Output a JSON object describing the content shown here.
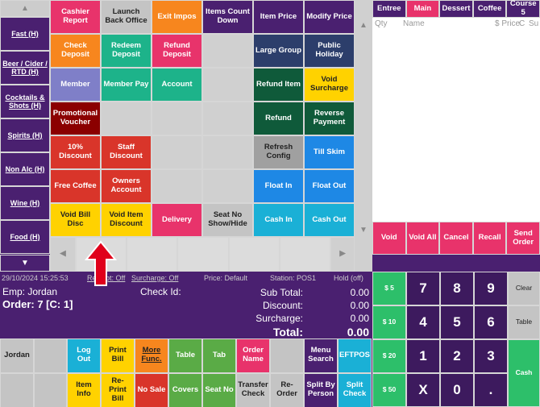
{
  "category_nav": {
    "items": [
      "Fast (H)",
      "Beer / Cider / RTD (H)",
      "Cocktails & Shots (H)",
      "Spirits (H)",
      "Non Alc (H)",
      "Wine (H)",
      "Food (H)"
    ]
  },
  "function_grid": {
    "buttons": [
      "Cashier Report",
      "Launch Back Office",
      "Exit Impos",
      "Items Count Down",
      "Item Price",
      "Modify Price",
      "Check Deposit",
      "Redeem Deposit",
      "Refund Deposit",
      "Large Group",
      "Public Holiday",
      "Member",
      "Member Pay",
      "Account",
      "Refund Item",
      "Void Surcharge",
      "Promotional Voucher",
      "Refund",
      "Reverse Payment",
      "10% Discount",
      "Staff Discount",
      "Refresh Config",
      "Till Skim",
      "Free Coffee",
      "Owners Account",
      "Float In",
      "Float Out",
      "Void Bill Disc",
      "Void Item Discount",
      "Delivery",
      "Seat No Show/Hide",
      "Cash In",
      "Cash Out"
    ]
  },
  "status_bar": {
    "items": [
      "29/10/2024 15:25:53",
      "Receipt: Off",
      "Surcharge: Off",
      "Price: Default",
      "Station: POS1",
      "Hold (off)"
    ]
  },
  "order_info": {
    "employee": "Emp: Jordan",
    "check_id": "Check Id:",
    "order": "Order: 7 [C:  1]",
    "totals": [
      {
        "label": "Sub Total:",
        "value": "0.00"
      },
      {
        "label": "Discount:",
        "value": "0.00"
      },
      {
        "label": "Surcharge:",
        "value": "0.00"
      },
      {
        "label": "Total:",
        "value": "0.00"
      }
    ]
  },
  "bottom_buttons": {
    "row1": [
      "Jordan",
      "Log Out",
      "Print Bill",
      "More Func.",
      "Table",
      "Tab",
      "Order Name",
      "Menu Search",
      "EFTPOS"
    ],
    "row2": [
      "Item Info",
      "Re-Print Bill",
      "No Sale",
      "Covers",
      "Seat No",
      "Transfer Check",
      "Re-Order",
      "Split By Person",
      "Split Check"
    ]
  },
  "course_tabs": [
    "Entree",
    "Main",
    "Dessert",
    "Coffee",
    "Course 5"
  ],
  "order_list": {
    "columns": [
      "Qty",
      "Name",
      "$ Price",
      "C",
      "Su"
    ]
  },
  "order_actions": [
    "Void",
    "Void All",
    "Cancel",
    "Recall",
    "Send Order"
  ],
  "numpad": {
    "cash_amounts": [
      "$ 5",
      "$ 10",
      "$ 20",
      "$ 50"
    ],
    "keys": [
      "7",
      "8",
      "9",
      "4",
      "5",
      "6",
      "1",
      "2",
      "3",
      "X",
      "0",
      "."
    ],
    "side": [
      "Clear",
      "Table",
      "Cash"
    ]
  }
}
